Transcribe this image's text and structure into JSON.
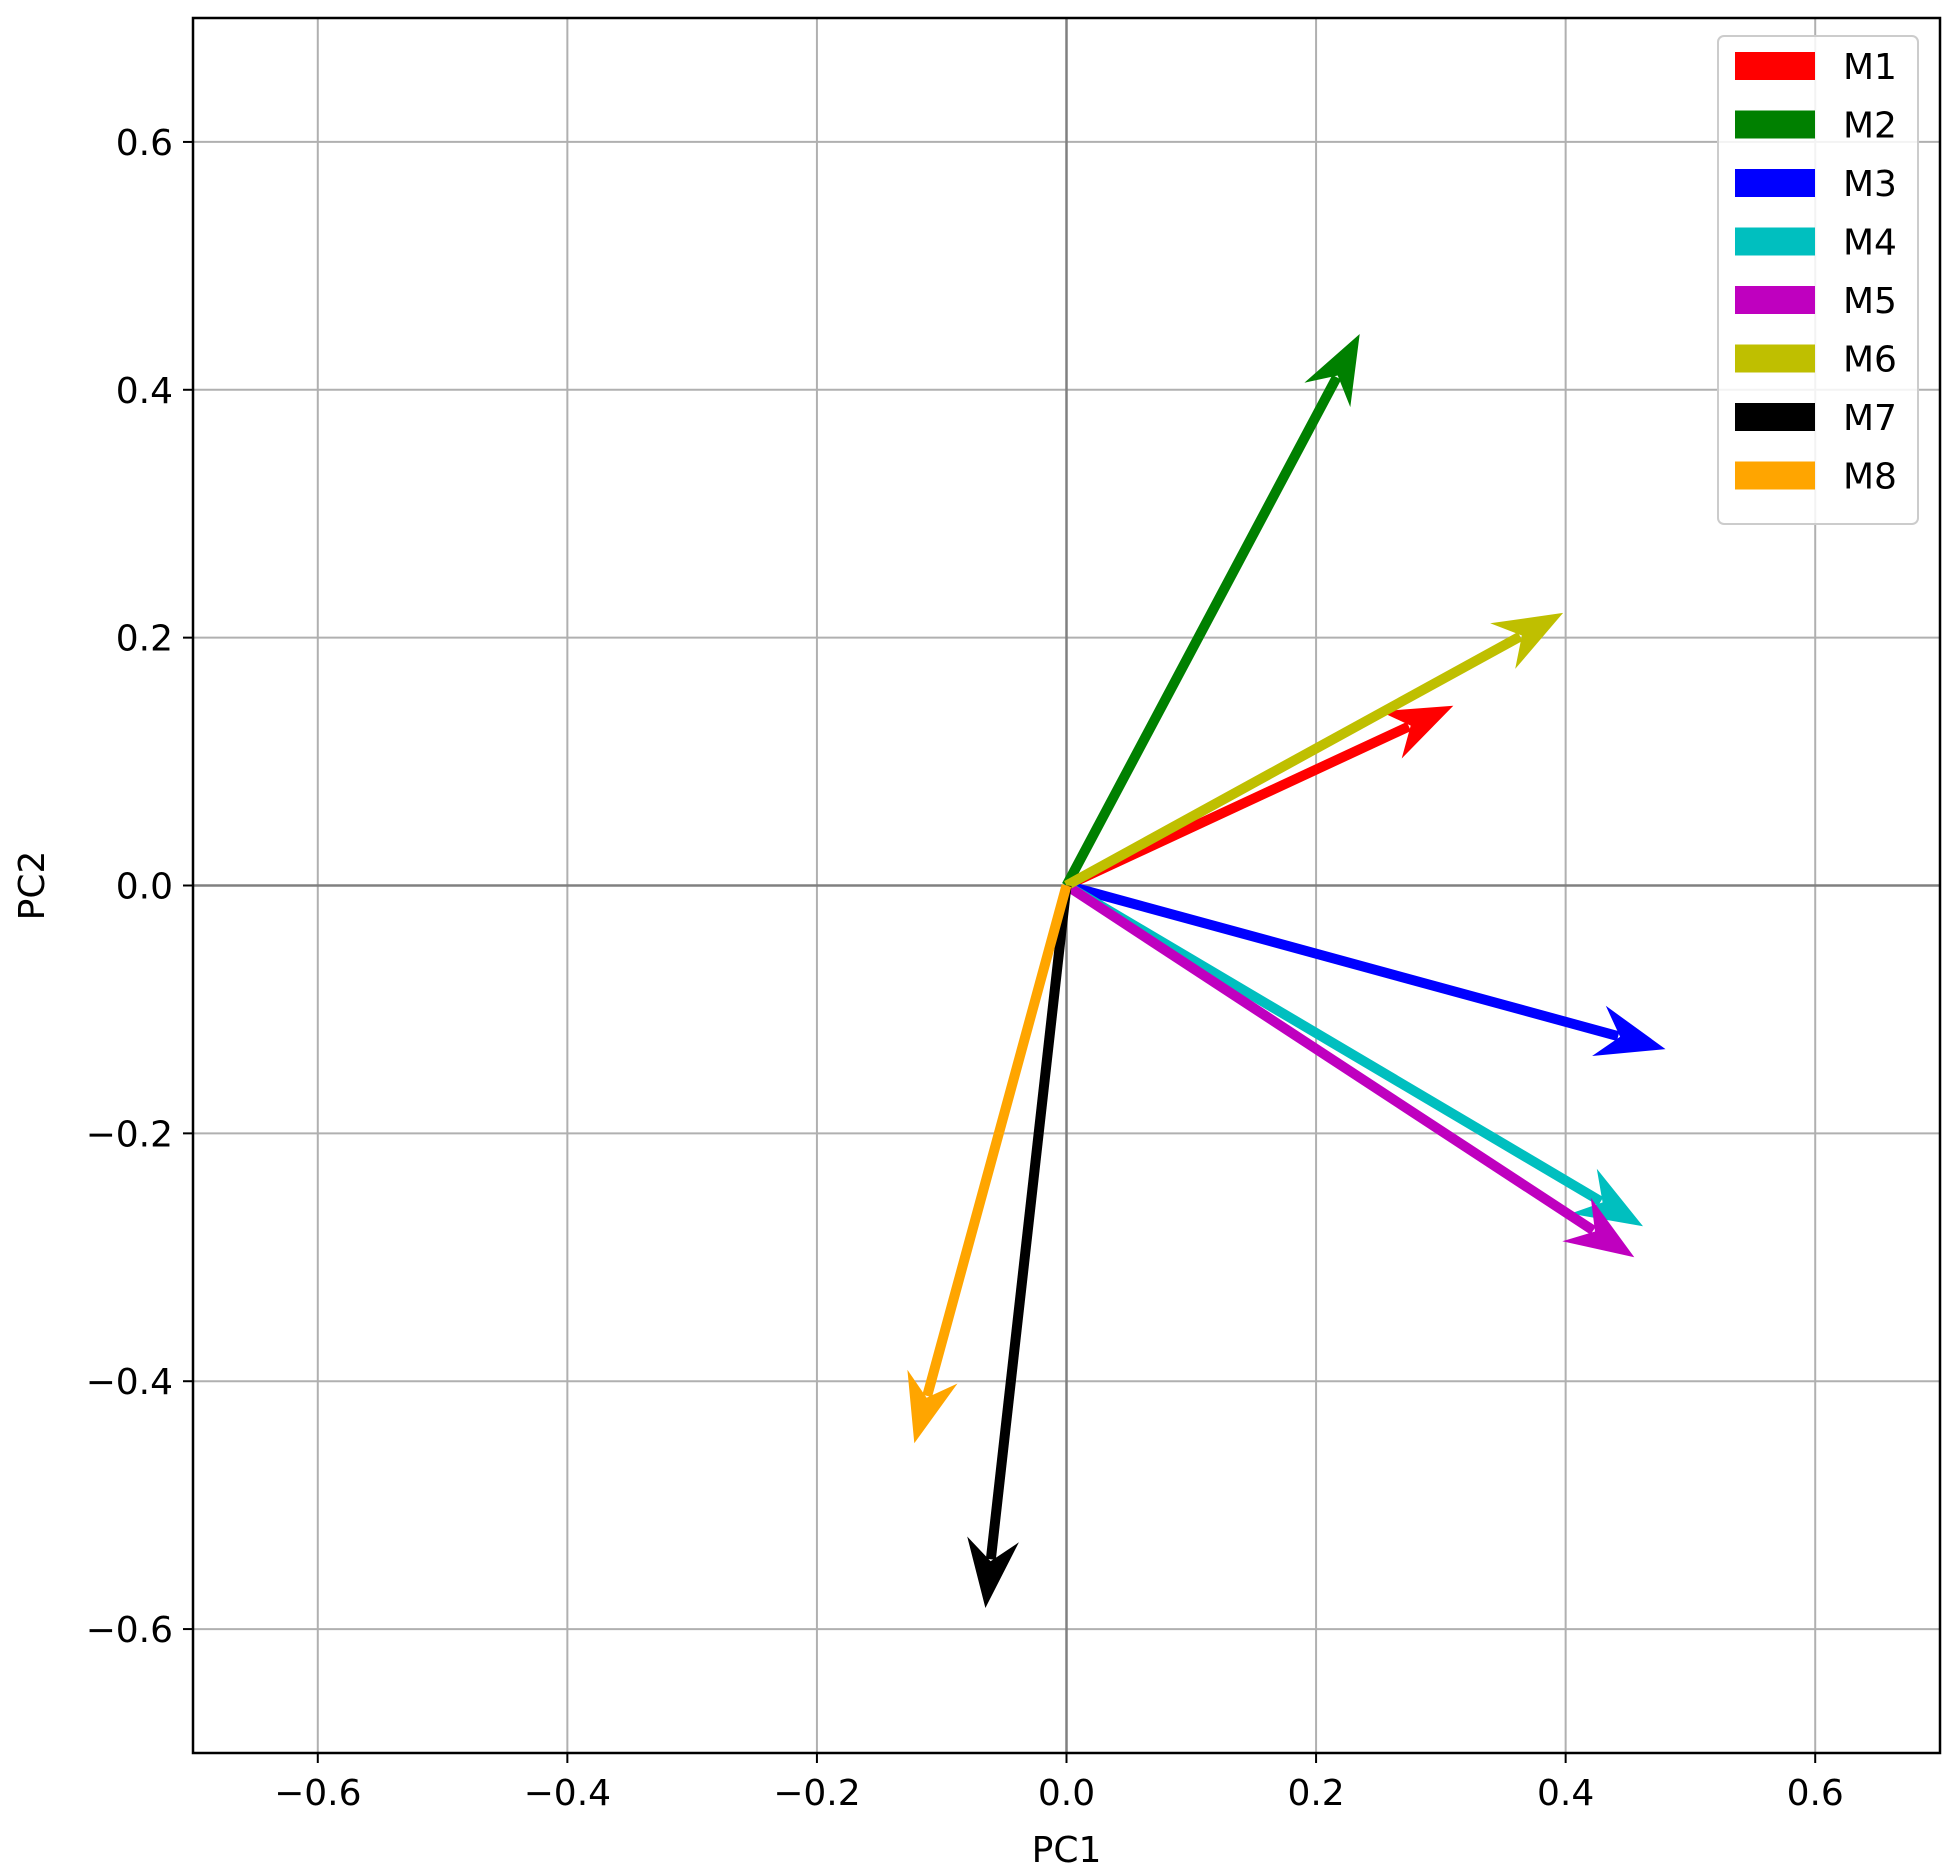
{
  "chart_data": {
    "type": "quiver",
    "xlabel": "PC1",
    "ylabel": "PC2",
    "xlim": [
      -0.7,
      0.7
    ],
    "ylim": [
      -0.7,
      0.7
    ],
    "xticks": [
      -0.6,
      -0.4,
      -0.2,
      0.0,
      0.2,
      0.4,
      0.6
    ],
    "yticks": [
      -0.6,
      -0.4,
      -0.2,
      0.0,
      0.2,
      0.4,
      0.6
    ],
    "xtick_labels": [
      "−0.6",
      "−0.4",
      "−0.2",
      "0.0",
      "0.2",
      "0.4",
      "0.6"
    ],
    "ytick_labels": [
      "−0.6",
      "−0.4",
      "−0.2",
      "0.0",
      "0.2",
      "0.4",
      "0.6"
    ],
    "grid": true,
    "zero_lines": true,
    "legend_position": "top-right",
    "series": [
      {
        "name": "M1",
        "color": "#ff0000",
        "x": 0.31,
        "y": 0.145
      },
      {
        "name": "M2",
        "color": "#008000",
        "x": 0.235,
        "y": 0.445
      },
      {
        "name": "M3",
        "color": "#0000ff",
        "x": 0.48,
        "y": -0.132
      },
      {
        "name": "M4",
        "color": "#00bfbf",
        "x": 0.462,
        "y": -0.275
      },
      {
        "name": "M5",
        "color": "#bf00bf",
        "x": 0.455,
        "y": -0.3
      },
      {
        "name": "M6",
        "color": "#bfbf00",
        "x": 0.398,
        "y": 0.22
      },
      {
        "name": "M7",
        "color": "#000000",
        "x": -0.065,
        "y": -0.583
      },
      {
        "name": "M8",
        "color": "#ffa500",
        "x": -0.122,
        "y": -0.45
      }
    ]
  }
}
